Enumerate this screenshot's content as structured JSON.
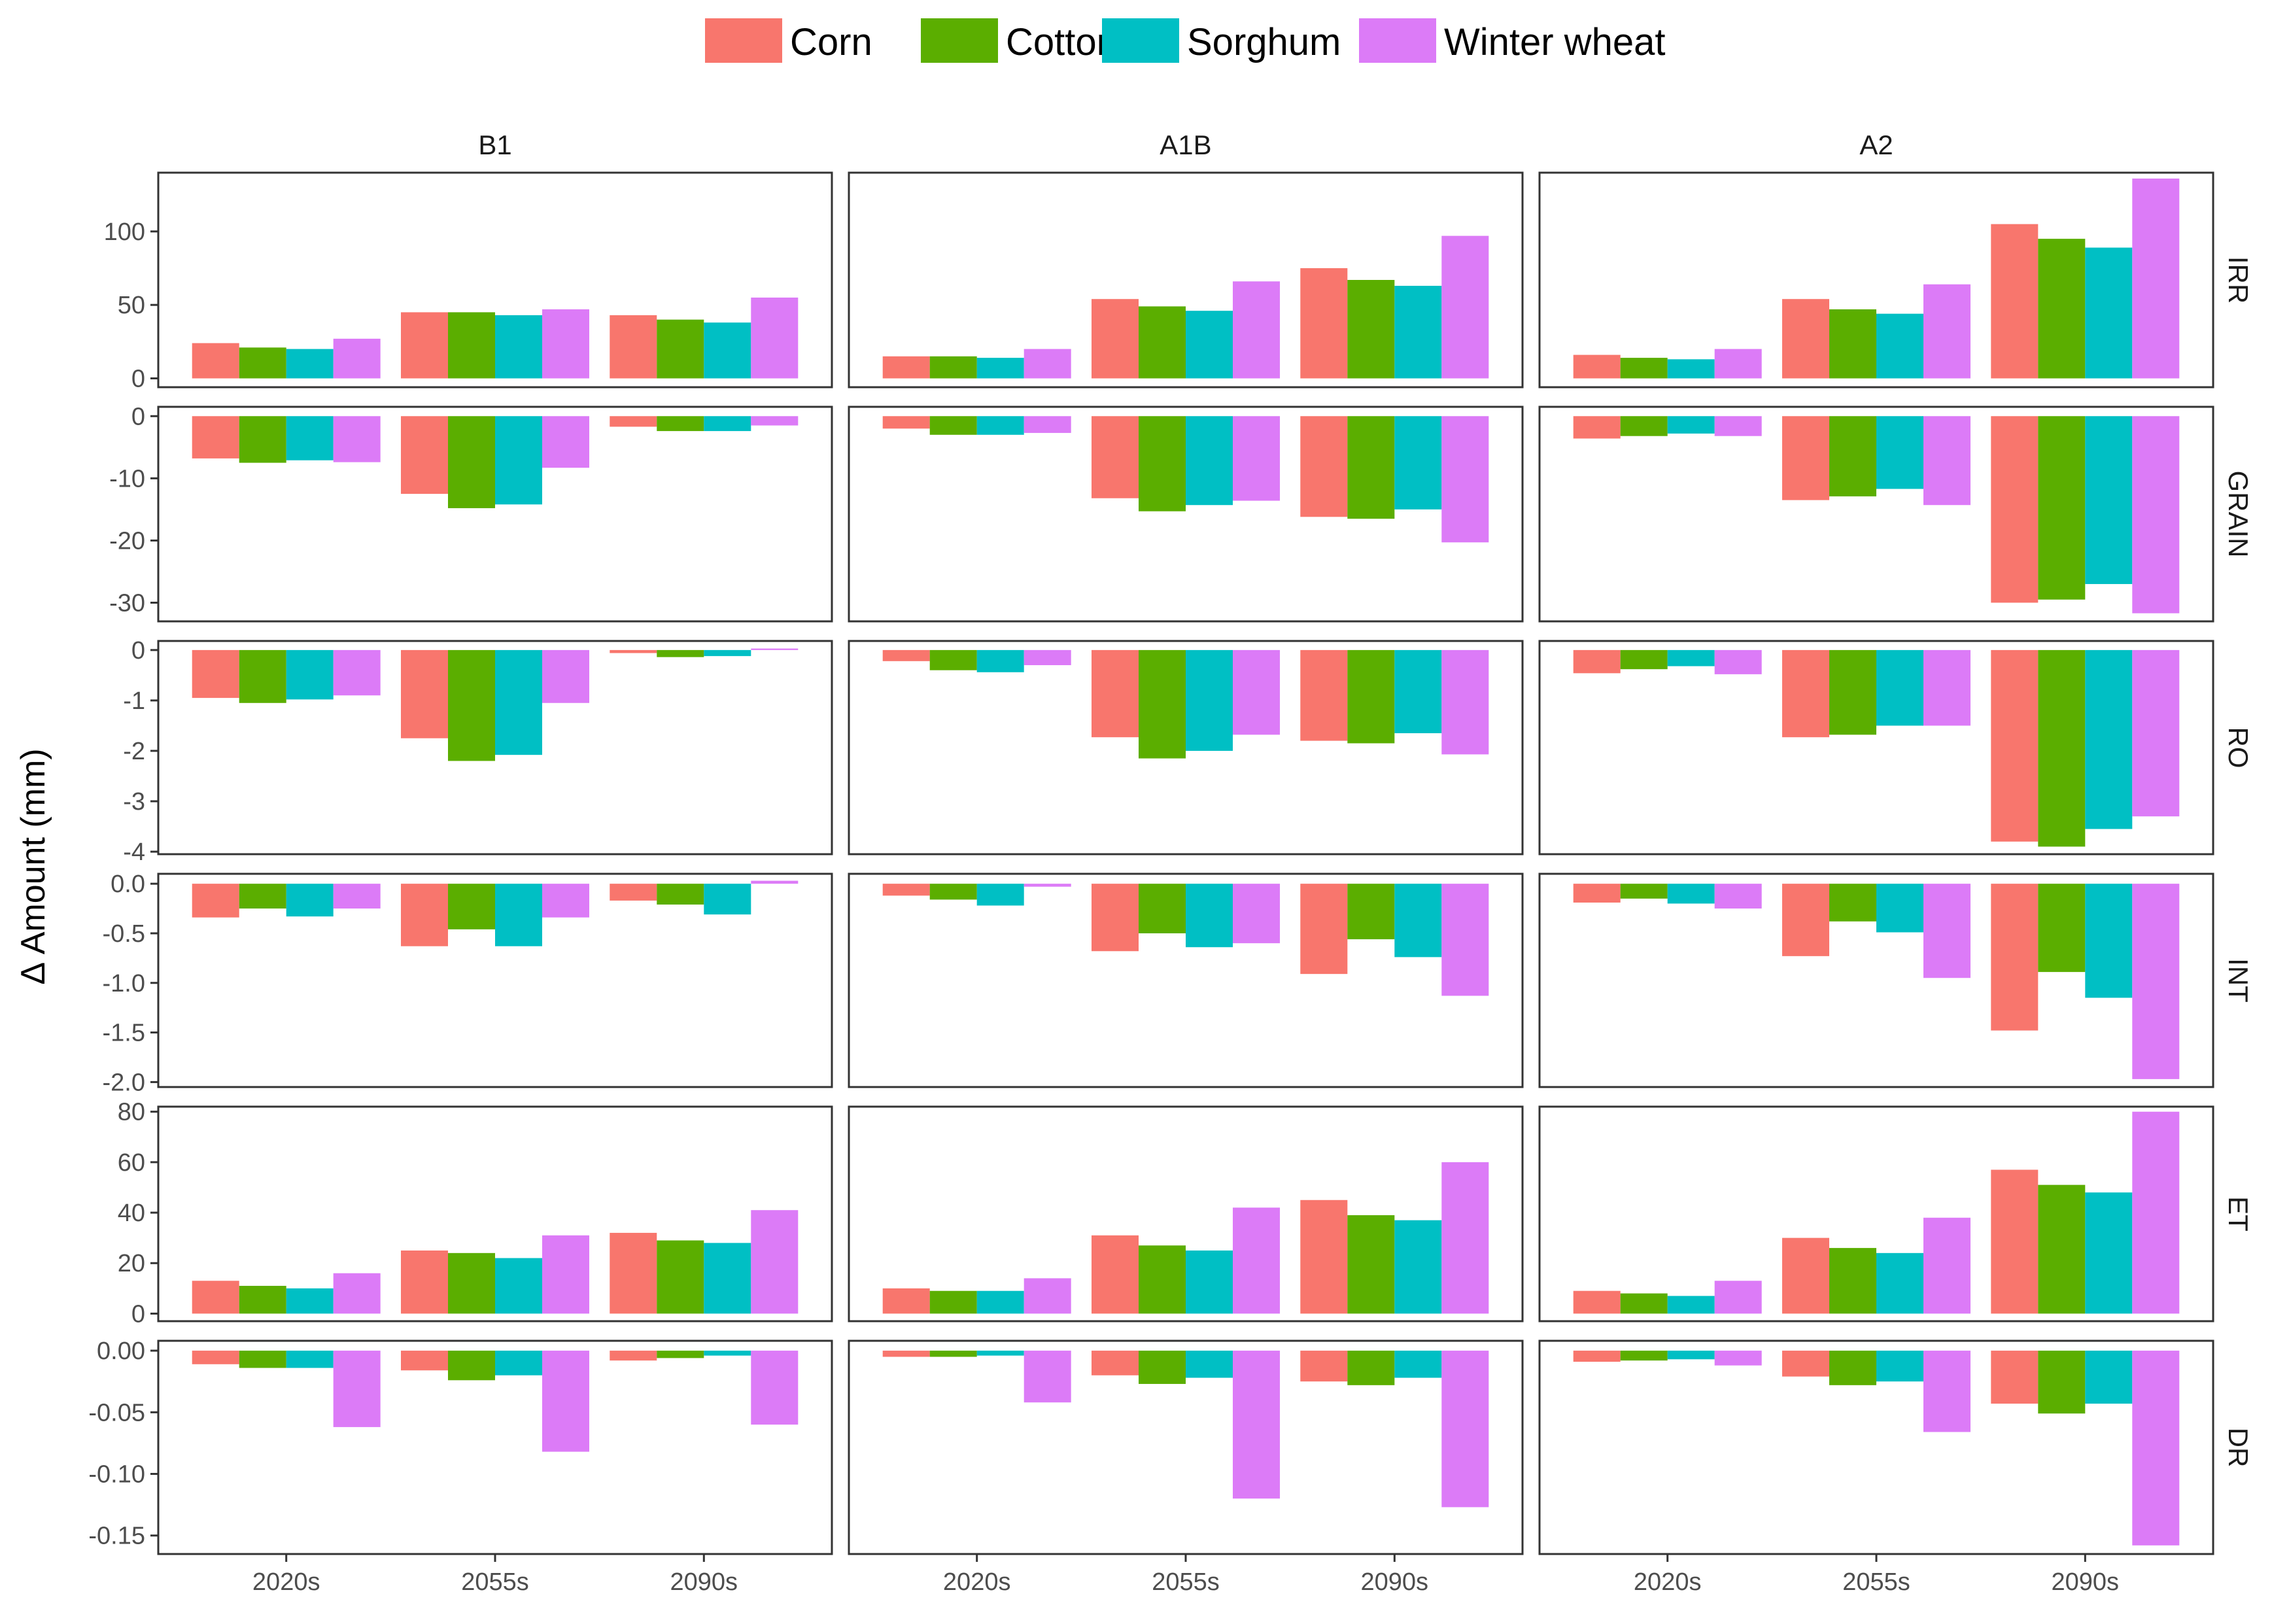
{
  "chart_data": {
    "type": "bar",
    "ylabel": "Δ Amount (mm)",
    "legend_position": "top",
    "grid": false,
    "categories": [
      "2020s",
      "2055s",
      "2090s"
    ],
    "series_names": [
      "Corn",
      "Cotton",
      "Sorghum",
      "Winter wheat"
    ],
    "colors": [
      "#F8766D",
      "#5BAE00",
      "#00BFC4",
      "#DC7BF7"
    ],
    "columns": [
      "B1",
      "A1B",
      "A2"
    ],
    "rows": [
      {
        "label": "IRR",
        "ylim": [
          -6,
          140
        ],
        "ticks": [
          0,
          50,
          100
        ],
        "tick_labels": [
          "0",
          "50",
          "100"
        ],
        "values": {
          "B1": [
            [
              24,
              21,
              20,
              27
            ],
            [
              45,
              45,
              43,
              47
            ],
            [
              43,
              40,
              38,
              55
            ]
          ],
          "A1B": [
            [
              15,
              15,
              14,
              20
            ],
            [
              54,
              49,
              46,
              66
            ],
            [
              75,
              67,
              63,
              97
            ]
          ],
          "A2": [
            [
              16,
              14,
              13,
              20
            ],
            [
              54,
              47,
              44,
              64
            ],
            [
              105,
              95,
              89,
              136
            ]
          ]
        }
      },
      {
        "label": "GRAIN",
        "ylim": [
          -33,
          1.5
        ],
        "ticks": [
          0,
          -10,
          -20,
          -30
        ],
        "tick_labels": [
          "0",
          "-10",
          "-20",
          "-30"
        ],
        "values": {
          "B1": [
            [
              -6.8,
              -7.5,
              -7.1,
              -7.4
            ],
            [
              -12.5,
              -14.8,
              -14.2,
              -8.3
            ],
            [
              -1.7,
              -2.4,
              -2.4,
              -1.5
            ]
          ],
          "A1B": [
            [
              -2.0,
              -3.0,
              -3.0,
              -2.7
            ],
            [
              -13.2,
              -15.3,
              -14.3,
              -13.6
            ],
            [
              -16.2,
              -16.5,
              -15.0,
              -20.3
            ]
          ],
          "A2": [
            [
              -3.6,
              -3.2,
              -2.8,
              -3.2
            ],
            [
              -13.5,
              -12.9,
              -11.7,
              -14.3
            ],
            [
              -30.0,
              -29.5,
              -27.0,
              -31.7
            ]
          ]
        }
      },
      {
        "label": "RO",
        "ylim": [
          -4.05,
          0.18
        ],
        "ticks": [
          0,
          -1,
          -2,
          -3,
          -4
        ],
        "tick_labels": [
          "0",
          "-1",
          "-2",
          "-3",
          "-4"
        ],
        "values": {
          "B1": [
            [
              -0.95,
              -1.05,
              -0.98,
              -0.9
            ],
            [
              -1.75,
              -2.2,
              -2.08,
              -1.05
            ],
            [
              -0.06,
              -0.14,
              -0.12,
              0.03
            ]
          ],
          "A1B": [
            [
              -0.22,
              -0.4,
              -0.44,
              -0.3
            ],
            [
              -1.73,
              -2.15,
              -2.0,
              -1.68
            ],
            [
              -1.8,
              -1.85,
              -1.65,
              -2.07
            ]
          ],
          "A2": [
            [
              -0.46,
              -0.38,
              -0.32,
              -0.48
            ],
            [
              -1.73,
              -1.68,
              -1.5,
              -1.5
            ],
            [
              -3.8,
              -3.9,
              -3.55,
              -3.3
            ]
          ]
        }
      },
      {
        "label": "INT",
        "ylim": [
          -2.05,
          0.1
        ],
        "ticks": [
          0,
          -0.5,
          -1,
          -1.5,
          -2
        ],
        "tick_labels": [
          "0.0",
          "-0.5",
          "-1.0",
          "-1.5",
          "-2.0"
        ],
        "values": {
          "B1": [
            [
              -0.34,
              -0.25,
              -0.33,
              -0.25
            ],
            [
              -0.63,
              -0.46,
              -0.63,
              -0.34
            ],
            [
              -0.17,
              -0.21,
              -0.31,
              0.03
            ]
          ],
          "A1B": [
            [
              -0.12,
              -0.16,
              -0.22,
              -0.03
            ],
            [
              -0.68,
              -0.5,
              -0.64,
              -0.6
            ],
            [
              -0.91,
              -0.56,
              -0.74,
              -1.13
            ]
          ],
          "A2": [
            [
              -0.19,
              -0.15,
              -0.2,
              -0.25
            ],
            [
              -0.73,
              -0.38,
              -0.49,
              -0.95
            ],
            [
              -1.48,
              -0.89,
              -1.15,
              -1.97
            ]
          ]
        }
      },
      {
        "label": "ET",
        "ylim": [
          -3,
          82
        ],
        "ticks": [
          0,
          20,
          40,
          60,
          80
        ],
        "tick_labels": [
          "0",
          "20",
          "40",
          "60",
          "80"
        ],
        "values": {
          "B1": [
            [
              13,
              11,
              10,
              16
            ],
            [
              25,
              24,
              22,
              31
            ],
            [
              32,
              29,
              28,
              41
            ]
          ],
          "A1B": [
            [
              10,
              9,
              9,
              14
            ],
            [
              31,
              27,
              25,
              42
            ],
            [
              45,
              39,
              37,
              60
            ]
          ],
          "A2": [
            [
              9,
              8,
              7,
              13
            ],
            [
              30,
              26,
              24,
              38
            ],
            [
              57,
              51,
              48,
              80
            ]
          ]
        }
      },
      {
        "label": "DR",
        "ylim": [
          -0.165,
          0.008
        ],
        "ticks": [
          0,
          -0.05,
          -0.1,
          -0.15
        ],
        "tick_labels": [
          "0.00",
          "-0.05",
          "-0.10",
          "-0.15"
        ],
        "values": {
          "B1": [
            [
              -0.011,
              -0.014,
              -0.014,
              -0.062
            ],
            [
              -0.016,
              -0.024,
              -0.02,
              -0.082
            ],
            [
              -0.008,
              -0.006,
              -0.004,
              -0.06
            ]
          ],
          "A1B": [
            [
              -0.005,
              -0.005,
              -0.004,
              -0.042
            ],
            [
              -0.02,
              -0.027,
              -0.022,
              -0.12
            ],
            [
              -0.025,
              -0.028,
              -0.022,
              -0.127
            ]
          ],
          "A2": [
            [
              -0.009,
              -0.008,
              -0.007,
              -0.012
            ],
            [
              -0.021,
              -0.028,
              -0.025,
              -0.066
            ],
            [
              -0.043,
              -0.051,
              -0.043,
              -0.158
            ]
          ]
        }
      }
    ]
  }
}
